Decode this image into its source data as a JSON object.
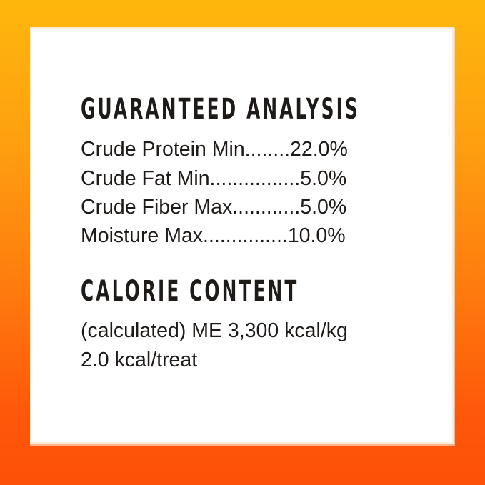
{
  "background": {
    "top_color": "#FEB70C",
    "bottom_color": "#FD5008"
  },
  "guaranteed_analysis": {
    "heading": "GUARANTEED ANALYSIS",
    "rows": [
      "Crude Protein Min........22.0%",
      "Crude Fat Min................5.0%",
      "Crude Fiber Max............5.0%",
      "Moisture Max...............10.0%"
    ]
  },
  "calorie_content": {
    "heading": "CALORIE CONTENT",
    "lines": [
      "(calculated) ME 3,300 kcal/kg",
      "2.0 kcal/treat"
    ]
  }
}
